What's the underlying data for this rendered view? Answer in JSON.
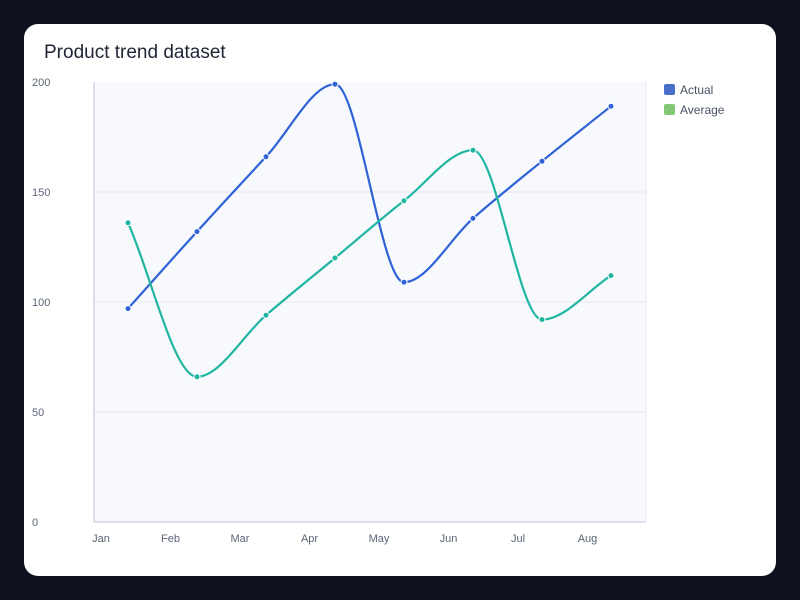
{
  "chart_data": {
    "type": "line",
    "title": "Product trend dataset",
    "xlabel": "",
    "ylabel": "",
    "categories": [
      "Jan",
      "Feb",
      "Mar",
      "Apr",
      "May",
      "Jun",
      "Jul",
      "Aug"
    ],
    "ylim": [
      0,
      200
    ],
    "yticks": [
      0,
      50,
      100,
      150,
      200
    ],
    "grid": true,
    "legend_position": "right",
    "series": [
      {
        "name": "Actual",
        "color": "#2f62d6",
        "legend_color": "#4a6fc9",
        "curve": "monotone",
        "values": [
          97,
          132,
          166,
          199,
          109,
          138,
          164,
          189
        ]
      },
      {
        "name": "Average",
        "color": "#1fb5a0",
        "legend_color": "#84c774",
        "curve": "monotone",
        "values": [
          136,
          66,
          94,
          120,
          146,
          169,
          92,
          112
        ]
      }
    ]
  }
}
